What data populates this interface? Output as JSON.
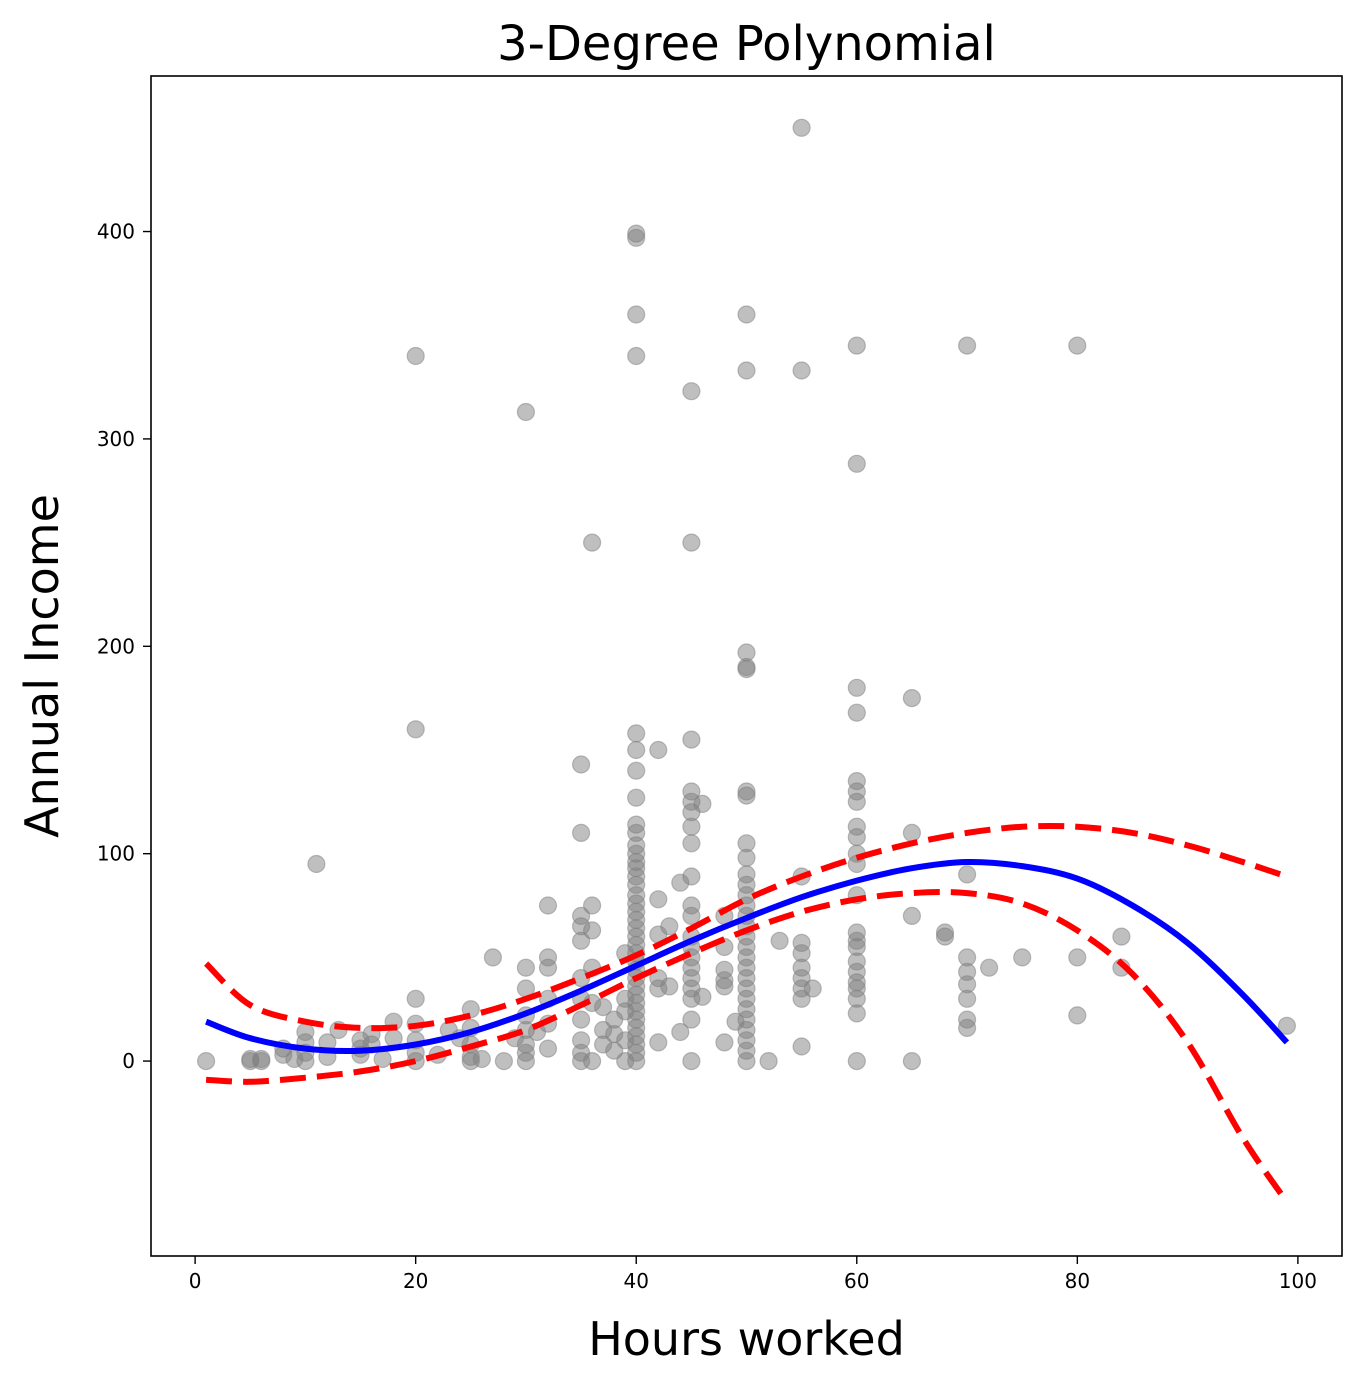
{
  "chart_data": {
    "type": "scatter",
    "title": "3-Degree Polynomial",
    "xlabel": "Hours worked",
    "ylabel": "Annual Income",
    "xlim": [
      -4,
      104
    ],
    "ylim": [
      -94,
      475
    ],
    "xticks": [
      0,
      20,
      40,
      60,
      80,
      100
    ],
    "yticks": [
      0,
      100,
      200,
      300,
      400
    ],
    "grid": false,
    "colors": {
      "points": "#808080",
      "fit": "#0000ff",
      "band": "#ff0000"
    },
    "series": [
      {
        "kind": "scatter",
        "points": [
          [
            1,
            0
          ],
          [
            5,
            0
          ],
          [
            5,
            1
          ],
          [
            6,
            1
          ],
          [
            6,
            0
          ],
          [
            8,
            3
          ],
          [
            8,
            6
          ],
          [
            9,
            1
          ],
          [
            10,
            0
          ],
          [
            10,
            4
          ],
          [
            10,
            9
          ],
          [
            10,
            14
          ],
          [
            11,
            95
          ],
          [
            12,
            2
          ],
          [
            12,
            9
          ],
          [
            13,
            15
          ],
          [
            15,
            3
          ],
          [
            15,
            6
          ],
          [
            15,
            10
          ],
          [
            16,
            8
          ],
          [
            16,
            13
          ],
          [
            17,
            1
          ],
          [
            18,
            19
          ],
          [
            18,
            11
          ],
          [
            20,
            340
          ],
          [
            20,
            160
          ],
          [
            20,
            30
          ],
          [
            20,
            18
          ],
          [
            20,
            10
          ],
          [
            20,
            4
          ],
          [
            20,
            0
          ],
          [
            22,
            3
          ],
          [
            23,
            15
          ],
          [
            24,
            11
          ],
          [
            25,
            25
          ],
          [
            25,
            16
          ],
          [
            25,
            8
          ],
          [
            25,
            2
          ],
          [
            25,
            0
          ],
          [
            26,
            1
          ],
          [
            27,
            50
          ],
          [
            28,
            0
          ],
          [
            29,
            11
          ],
          [
            30,
            313
          ],
          [
            30,
            45
          ],
          [
            30,
            35
          ],
          [
            30,
            22
          ],
          [
            30,
            15
          ],
          [
            30,
            8
          ],
          [
            30,
            4
          ],
          [
            30,
            0
          ],
          [
            31,
            14
          ],
          [
            32,
            75
          ],
          [
            32,
            50
          ],
          [
            32,
            45
          ],
          [
            32,
            30
          ],
          [
            32,
            18
          ],
          [
            32,
            6
          ],
          [
            35,
            143
          ],
          [
            35,
            110
          ],
          [
            35,
            70
          ],
          [
            35,
            65
          ],
          [
            35,
            58
          ],
          [
            35,
            40
          ],
          [
            35,
            30
          ],
          [
            35,
            20
          ],
          [
            35,
            10
          ],
          [
            35,
            4
          ],
          [
            35,
            0
          ],
          [
            36,
            250
          ],
          [
            36,
            75
          ],
          [
            36,
            63
          ],
          [
            36,
            45
          ],
          [
            36,
            28
          ],
          [
            36,
            0
          ],
          [
            37,
            26
          ],
          [
            37,
            15
          ],
          [
            37,
            8
          ],
          [
            38,
            20
          ],
          [
            38,
            13
          ],
          [
            38,
            5
          ],
          [
            39,
            52
          ],
          [
            39,
            30
          ],
          [
            39,
            24
          ],
          [
            39,
            10
          ],
          [
            39,
            0
          ],
          [
            40,
            399
          ],
          [
            40,
            397
          ],
          [
            40,
            360
          ],
          [
            40,
            340
          ],
          [
            40,
            158
          ],
          [
            40,
            150
          ],
          [
            40,
            140
          ],
          [
            40,
            127
          ],
          [
            40,
            114
          ],
          [
            40,
            110
          ],
          [
            40,
            104
          ],
          [
            40,
            100
          ],
          [
            40,
            96
          ],
          [
            40,
            93
          ],
          [
            40,
            89
          ],
          [
            40,
            85
          ],
          [
            40,
            80
          ],
          [
            40,
            76
          ],
          [
            40,
            72
          ],
          [
            40,
            68
          ],
          [
            40,
            64
          ],
          [
            40,
            60
          ],
          [
            40,
            56
          ],
          [
            40,
            52
          ],
          [
            40,
            48
          ],
          [
            40,
            44
          ],
          [
            40,
            40
          ],
          [
            40,
            36
          ],
          [
            40,
            32
          ],
          [
            40,
            28
          ],
          [
            40,
            24
          ],
          [
            40,
            20
          ],
          [
            40,
            16
          ],
          [
            40,
            12
          ],
          [
            40,
            8
          ],
          [
            40,
            4
          ],
          [
            40,
            0
          ],
          [
            42,
            150
          ],
          [
            42,
            78
          ],
          [
            42,
            61
          ],
          [
            42,
            40
          ],
          [
            42,
            35
          ],
          [
            42,
            9
          ],
          [
            43,
            65
          ],
          [
            43,
            36
          ],
          [
            44,
            86
          ],
          [
            44,
            14
          ],
          [
            45,
            323
          ],
          [
            45,
            250
          ],
          [
            45,
            155
          ],
          [
            45,
            130
          ],
          [
            45,
            125
          ],
          [
            45,
            120
          ],
          [
            45,
            113
          ],
          [
            45,
            105
          ],
          [
            45,
            89
          ],
          [
            45,
            75
          ],
          [
            45,
            70
          ],
          [
            45,
            60
          ],
          [
            45,
            55
          ],
          [
            45,
            50
          ],
          [
            45,
            45
          ],
          [
            45,
            40
          ],
          [
            45,
            35
          ],
          [
            45,
            30
          ],
          [
            45,
            20
          ],
          [
            45,
            0
          ],
          [
            46,
            124
          ],
          [
            46,
            31
          ],
          [
            48,
            70
          ],
          [
            48,
            55
          ],
          [
            48,
            44
          ],
          [
            48,
            39
          ],
          [
            48,
            36
          ],
          [
            48,
            9
          ],
          [
            49,
            19
          ],
          [
            50,
            360
          ],
          [
            50,
            333
          ],
          [
            50,
            197
          ],
          [
            50,
            190
          ],
          [
            50,
            189
          ],
          [
            50,
            130
          ],
          [
            50,
            128
          ],
          [
            50,
            105
          ],
          [
            50,
            98
          ],
          [
            50,
            90
          ],
          [
            50,
            85
          ],
          [
            50,
            80
          ],
          [
            50,
            75
          ],
          [
            50,
            70
          ],
          [
            50,
            65
          ],
          [
            50,
            60
          ],
          [
            50,
            55
          ],
          [
            50,
            50
          ],
          [
            50,
            45
          ],
          [
            50,
            40
          ],
          [
            50,
            35
          ],
          [
            50,
            30
          ],
          [
            50,
            25
          ],
          [
            50,
            20
          ],
          [
            50,
            15
          ],
          [
            50,
            10
          ],
          [
            50,
            5
          ],
          [
            50,
            0
          ],
          [
            52,
            0
          ],
          [
            53,
            58
          ],
          [
            55,
            450
          ],
          [
            55,
            333
          ],
          [
            55,
            89
          ],
          [
            55,
            57
          ],
          [
            55,
            52
          ],
          [
            55,
            45
          ],
          [
            55,
            40
          ],
          [
            55,
            35
          ],
          [
            55,
            30
          ],
          [
            55,
            7
          ],
          [
            56,
            35
          ],
          [
            60,
            345
          ],
          [
            60,
            288
          ],
          [
            60,
            180
          ],
          [
            60,
            168
          ],
          [
            60,
            135
          ],
          [
            60,
            130
          ],
          [
            60,
            125
          ],
          [
            60,
            113
          ],
          [
            60,
            108
          ],
          [
            60,
            100
          ],
          [
            60,
            95
          ],
          [
            60,
            80
          ],
          [
            60,
            62
          ],
          [
            60,
            58
          ],
          [
            60,
            55
          ],
          [
            60,
            48
          ],
          [
            60,
            43
          ],
          [
            60,
            38
          ],
          [
            60,
            35
          ],
          [
            60,
            30
          ],
          [
            60,
            23
          ],
          [
            60,
            0
          ],
          [
            65,
            175
          ],
          [
            65,
            110
          ],
          [
            65,
            70
          ],
          [
            65,
            0
          ],
          [
            68,
            62
          ],
          [
            68,
            60
          ],
          [
            70,
            345
          ],
          [
            70,
            90
          ],
          [
            70,
            50
          ],
          [
            70,
            43
          ],
          [
            70,
            37
          ],
          [
            70,
            30
          ],
          [
            70,
            20
          ],
          [
            70,
            16
          ],
          [
            72,
            45
          ],
          [
            75,
            50
          ],
          [
            80,
            345
          ],
          [
            80,
            50
          ],
          [
            80,
            22
          ],
          [
            84,
            60
          ],
          [
            84,
            45
          ],
          [
            99,
            17
          ]
        ]
      }
    ],
    "fit": {
      "kind": "line",
      "x": [
        1,
        5,
        10,
        15,
        20,
        25,
        30,
        35,
        40,
        45,
        50,
        55,
        60,
        65,
        70,
        75,
        80,
        85,
        90,
        95,
        99
      ],
      "y": [
        19,
        11,
        6,
        5,
        8,
        14,
        23,
        34,
        46,
        58,
        69,
        79,
        87,
        93,
        96,
        94,
        88,
        75,
        57,
        32,
        9
      ]
    },
    "upper_band": {
      "kind": "line",
      "x": [
        1,
        5,
        10,
        15,
        20,
        25,
        30,
        35,
        40,
        45,
        50,
        55,
        60,
        65,
        70,
        75,
        80,
        85,
        90,
        95,
        99
      ],
      "y": [
        47,
        27,
        19,
        16,
        17,
        22,
        30,
        40,
        51,
        64,
        78,
        89,
        98,
        105,
        110,
        113,
        113,
        110,
        104,
        96,
        89
      ]
    },
    "lower_band": {
      "kind": "line",
      "x": [
        1,
        5,
        10,
        15,
        20,
        25,
        30,
        35,
        40,
        45,
        50,
        55,
        60,
        65,
        70,
        75,
        80,
        85,
        90,
        95,
        99
      ],
      "y": [
        -9,
        -10,
        -8,
        -5,
        0,
        7,
        15,
        27,
        40,
        52,
        63,
        72,
        78,
        81,
        81,
        76,
        63,
        42,
        9,
        -37,
        -68
      ]
    }
  }
}
